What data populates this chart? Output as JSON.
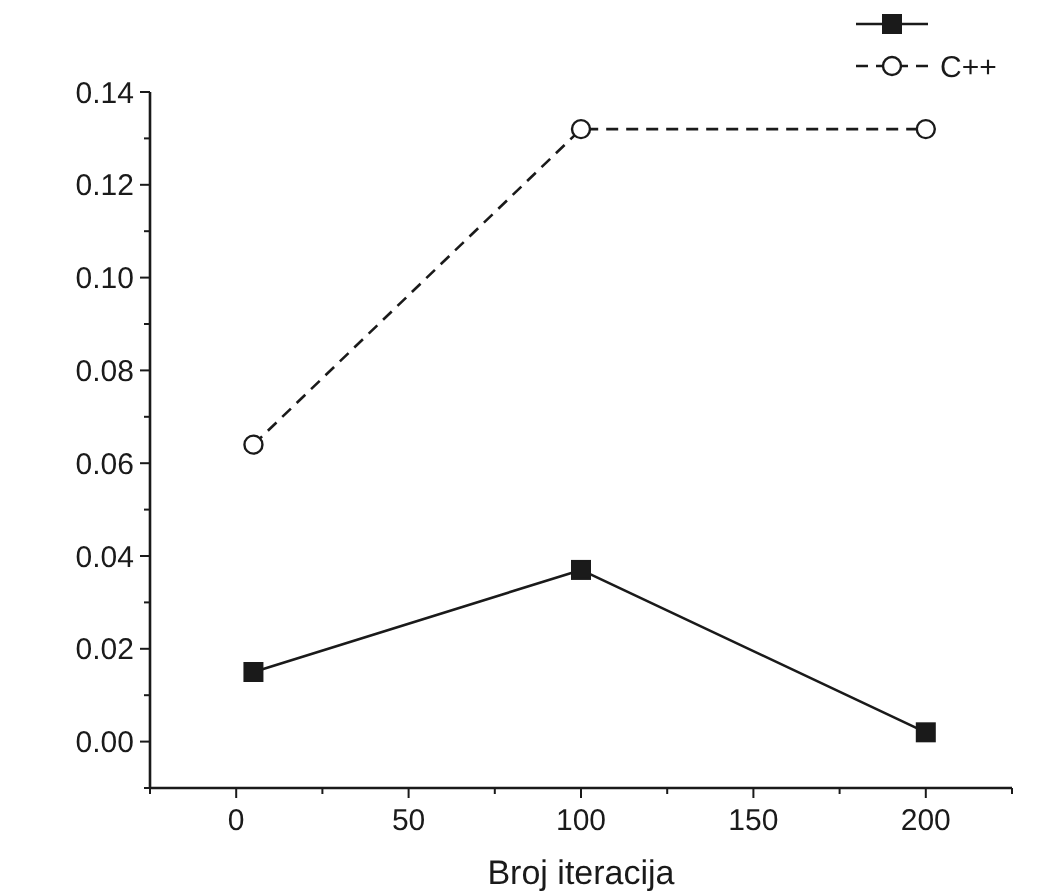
{
  "chart_data": {
    "type": "line",
    "xlabel": "Broj iteracija",
    "x": [
      5,
      100,
      200
    ],
    "series": [
      {
        "color": "#1a1a1a",
        "values": [
          0.015,
          0.037,
          0.002
        ],
        "marker": "square",
        "line_style": "solid"
      },
      {
        "name": "C++",
        "color": "#1a1a1a",
        "values": [
          0.064,
          0.132,
          0.132
        ],
        "marker": "circle",
        "line_style": "dashed"
      }
    ],
    "xlim": [
      -25,
      225
    ],
    "xticks": [
      {
        "value": -25,
        "label": null
      },
      0,
      {
        "value": 25,
        "label": null
      },
      50,
      {
        "value": 75,
        "label": null
      },
      100,
      {
        "value": 125,
        "label": null
      },
      150,
      {
        "value": 175,
        "label": null
      },
      200,
      {
        "value": 225,
        "label": null
      }
    ],
    "ylim": [
      -0.01,
      0.14
    ],
    "yticks": [
      {
        "value": -0.01,
        "label": null
      },
      {
        "value": 0,
        "label": "0.00"
      },
      {
        "value": 0.01,
        "label": null
      },
      {
        "value": 0.02,
        "label": "0.02"
      },
      {
        "value": 0.03,
        "label": null
      },
      {
        "value": 0.04,
        "label": "0.04"
      },
      {
        "value": 0.05,
        "label": null
      },
      {
        "value": 0.06,
        "label": "0.06"
      },
      {
        "value": 0.07,
        "label": null
      },
      {
        "value": 0.08,
        "label": "0.08"
      },
      {
        "value": 0.09,
        "label": null
      },
      {
        "value": 0.1,
        "label": "0.10"
      },
      {
        "value": 0.11,
        "label": null
      },
      {
        "value": 0.12,
        "label": "0.12"
      },
      {
        "value": 0.13,
        "label": null
      },
      {
        "value": 0.14,
        "label": "0.14"
      }
    ],
    "grid": false,
    "legend": "top right"
  }
}
